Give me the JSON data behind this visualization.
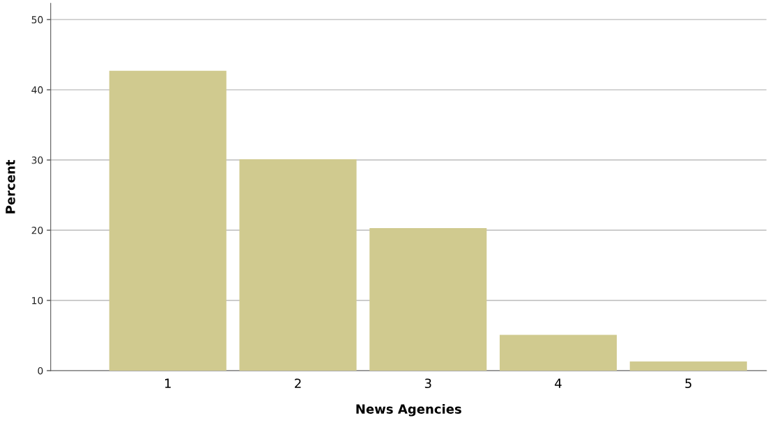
{
  "chart_data": {
    "type": "bar",
    "xlabel": "News Agencies",
    "ylabel": "Percent",
    "categories": [
      "1",
      "2",
      "3",
      "4",
      "5"
    ],
    "values": [
      42.7,
      30.1,
      20.3,
      5.1,
      1.3
    ],
    "color": "#d0ca8f",
    "ylim": [
      0,
      52.3
    ],
    "yticks": [
      0,
      10,
      20,
      30,
      40,
      50
    ],
    "grid": "y",
    "legend": false
  }
}
